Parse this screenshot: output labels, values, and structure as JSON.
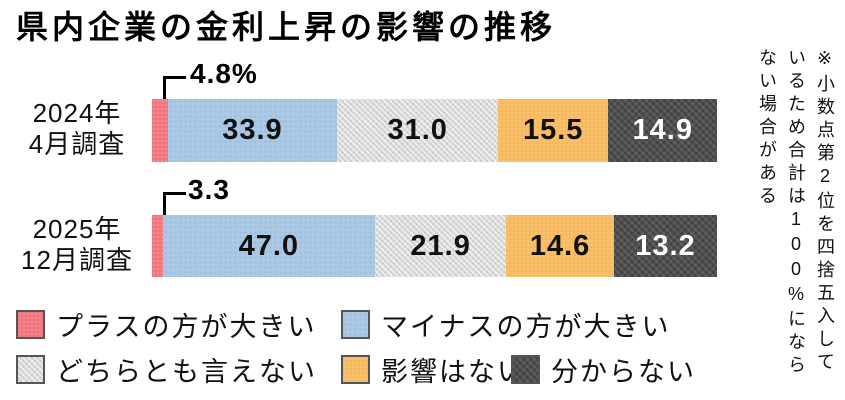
{
  "title": "県内企業の金利上昇の影響の推移",
  "note": [
    "※小数点第2位を四捨五入して",
    "いるため合計は100%になら",
    "ない場合がある"
  ],
  "chart_data": {
    "type": "bar",
    "subtype": "horizontal-stacked",
    "unit": "%",
    "xlim": [
      0,
      100
    ],
    "value_labels_on_bars": true,
    "categories": [
      "2024年4月調査",
      "2025年12月調査"
    ],
    "series": [
      {
        "name": "プラスの方が大きい",
        "color": "#f2767d",
        "values": [
          4.8,
          3.3
        ]
      },
      {
        "name": "マイナスの方が大きい",
        "color": "#abc8e4",
        "values": [
          33.9,
          47.0
        ]
      },
      {
        "name": "どちらとも言えない",
        "color": "#dadada",
        "values": [
          31.0,
          21.9
        ]
      },
      {
        "name": "影響はない",
        "color": "#f7ba60",
        "values": [
          15.5,
          14.6
        ]
      },
      {
        "name": "分からない",
        "color": "#4e4e4e",
        "values": [
          14.9,
          13.2
        ]
      }
    ]
  },
  "rows": [
    {
      "label_lines": [
        "2024年",
        "4月調査"
      ],
      "callout": "4.8%",
      "segment_labels": [
        "33.9",
        "31.0",
        "15.5",
        "14.9"
      ]
    },
    {
      "label_lines": [
        "2025年",
        "12月調査"
      ],
      "callout": "3.3",
      "segment_labels": [
        "47.0",
        "21.9",
        "14.6",
        "13.2"
      ]
    }
  ]
}
